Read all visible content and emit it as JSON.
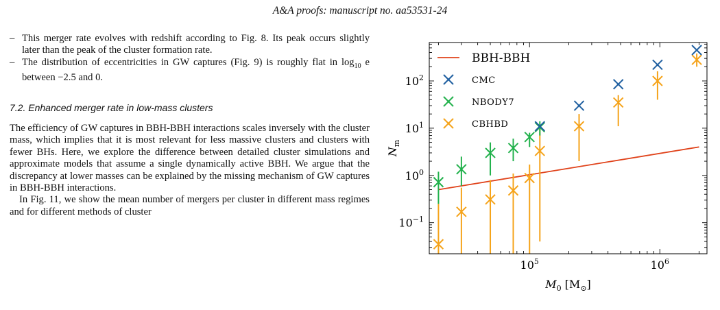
{
  "header": {
    "title": "A&A proofs: manuscript no. aa53531-24"
  },
  "bullets": [
    {
      "text": "This merger rate evolves with redshift according to Fig. 8. Its peak occurs slightly later than the peak of the cluster formation rate."
    },
    {
      "pre": "The distribution of eccentricities in GW captures (Fig. 9) is roughly flat in log",
      "sub": "10",
      "post": " e between −2.5 and 0."
    }
  ],
  "section": {
    "title": "7.2. Enhanced merger rate in low-mass clusters"
  },
  "paragraphs": [
    "The efficiency of GW captures in BBH-BBH interactions scales inversely with the cluster mass, which implies that it is most relevant for less massive clusters and clusters with fewer BHs. Here, we explore the difference between detailed cluster simulations and approximate models that assume a single dynamically active BBH. We argue that the discrepancy at lower masses can be explained by the missing mechanism of GW captures in BBH-BBH interactions.",
    "In Fig. 11, we show the mean number of mergers per cluster in different mass regimes and for different methods of cluster"
  ],
  "colors": {
    "bbh_line": "#e0421a",
    "cmc": "#1f5fa0",
    "nbody7": "#22b14c",
    "cbhbd": "#f5a31a"
  },
  "chart_data": {
    "type": "scatter",
    "xscale": "log",
    "yscale": "log",
    "xlim": [
      17000,
      2300000
    ],
    "ylim": [
      0.022,
      650
    ],
    "xlabel": {
      "symbol": "M",
      "sub": "0",
      "unit": " [M",
      "unit_sub": "⊙",
      "close": "]"
    },
    "ylabel": {
      "symbol": "N",
      "sub": "m"
    },
    "xticks": [
      {
        "value": 100000,
        "base": "10",
        "exp": "5"
      },
      {
        "value": 1000000,
        "base": "10",
        "exp": "6"
      }
    ],
    "yticks": [
      {
        "value": 0.1,
        "base": "10",
        "exp": "−1"
      },
      {
        "value": 1,
        "base": "10",
        "exp": "0"
      },
      {
        "value": 10,
        "base": "10",
        "exp": "1"
      },
      {
        "value": 100,
        "base": "10",
        "exp": "2"
      }
    ],
    "legend_position": "top-left",
    "line": {
      "name": "BBH-BBH",
      "x": [
        20000,
        2000000
      ],
      "y": [
        0.5,
        4.0
      ]
    },
    "series": [
      {
        "name": "CMC",
        "color_key": "cmc",
        "points": [
          {
            "x": 120000,
            "y": 11,
            "lo": 11,
            "hi": 11
          },
          {
            "x": 240000,
            "y": 30,
            "lo": 30,
            "hi": 30
          },
          {
            "x": 480000,
            "y": 85,
            "lo": 85,
            "hi": 85
          },
          {
            "x": 960000,
            "y": 220,
            "lo": 220,
            "hi": 220
          },
          {
            "x": 1920000,
            "y": 450,
            "lo": 450,
            "hi": 450
          }
        ]
      },
      {
        "name": "NBODY7",
        "color_key": "nbody7",
        "points": [
          {
            "x": 20000,
            "y": 0.72,
            "lo": 0.25,
            "hi": 1.2
          },
          {
            "x": 30000,
            "y": 1.35,
            "lo": 0.6,
            "hi": 2.5
          },
          {
            "x": 50000,
            "y": 3.0,
            "lo": 1.0,
            "hi": 5.0
          },
          {
            "x": 75000,
            "y": 3.8,
            "lo": 2.0,
            "hi": 6.0
          },
          {
            "x": 100000,
            "y": 6.5,
            "lo": 4.0,
            "hi": 8.0
          },
          {
            "x": 120000,
            "y": 10.5,
            "lo": 7.0,
            "hi": 14.0
          }
        ]
      },
      {
        "name": "CBHBD",
        "color_key": "cbhbd",
        "points": [
          {
            "x": 20000,
            "y": 0.035,
            "lo": 0.02,
            "hi": 0.25
          },
          {
            "x": 30000,
            "y": 0.17,
            "lo": 0.02,
            "hi": 0.55
          },
          {
            "x": 50000,
            "y": 0.31,
            "lo": 0.02,
            "hi": 0.8
          },
          {
            "x": 75000,
            "y": 0.48,
            "lo": 0.02,
            "hi": 1.1
          },
          {
            "x": 100000,
            "y": 0.88,
            "lo": 0.02,
            "hi": 1.7
          },
          {
            "x": 120000,
            "y": 3.3,
            "lo": 0.04,
            "hi": 10.0
          },
          {
            "x": 240000,
            "y": 11,
            "lo": 2.0,
            "hi": 20.0
          },
          {
            "x": 480000,
            "y": 35,
            "lo": 11.0,
            "hi": 50.0
          },
          {
            "x": 960000,
            "y": 100,
            "lo": 40.0,
            "hi": 160.0
          },
          {
            "x": 1920000,
            "y": 280,
            "lo": 200.0,
            "hi": 380.0
          }
        ]
      }
    ]
  }
}
